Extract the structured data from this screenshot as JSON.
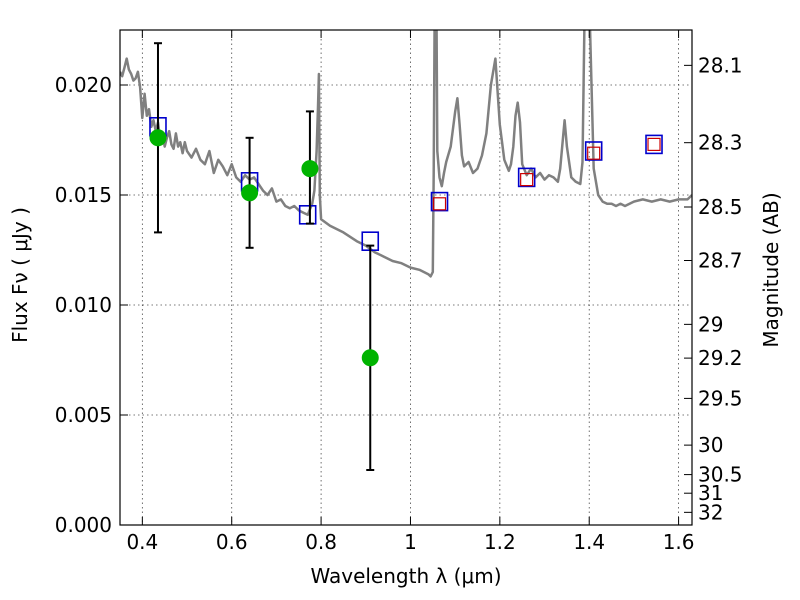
{
  "chart_data": {
    "type": "scatter",
    "xlabel": "Wavelength  λ (μm)",
    "ylabel": "Flux  Fν  ( μJy )",
    "ylabel_right": "Magnitude (AB)",
    "xlim": [
      0.35,
      1.63
    ],
    "ylim": [
      0.0,
      0.0225
    ],
    "x_ticks": [
      {
        "value": 0.4,
        "label": "0.4"
      },
      {
        "value": 0.6,
        "label": "0.6"
      },
      {
        "value": 0.8,
        "label": "0.8"
      },
      {
        "value": 1.0,
        "label": "1"
      },
      {
        "value": 1.2,
        "label": "1.2"
      },
      {
        "value": 1.4,
        "label": "1.4"
      },
      {
        "value": 1.6,
        "label": "1.6"
      }
    ],
    "y_ticks": [
      {
        "value": 0.0,
        "label": "0.000"
      },
      {
        "value": 0.005,
        "label": "0.005"
      },
      {
        "value": 0.01,
        "label": "0.010"
      },
      {
        "value": 0.015,
        "label": "0.015"
      },
      {
        "value": 0.02,
        "label": "0.020"
      }
    ],
    "right_ticks": [
      {
        "value": 28.1,
        "label": "28.1"
      },
      {
        "value": 28.3,
        "label": "28.3"
      },
      {
        "value": 28.5,
        "label": "28.5"
      },
      {
        "value": 28.7,
        "label": "28.7"
      },
      {
        "value": 29.0,
        "label": "29"
      },
      {
        "value": 29.2,
        "label": "29.2"
      },
      {
        "value": 29.5,
        "label": "29.5"
      },
      {
        "value": 30.0,
        "label": "30"
      },
      {
        "value": 30.5,
        "label": "30.5"
      },
      {
        "value": 31.0,
        "label": "31"
      },
      {
        "value": 32.0,
        "label": "32"
      }
    ],
    "grid": true,
    "series": [
      {
        "kind": "sed-template-line",
        "color": "#808080",
        "x": [
          0.35,
          0.355,
          0.36,
          0.365,
          0.37,
          0.375,
          0.38,
          0.385,
          0.39,
          0.395,
          0.4,
          0.405,
          0.41,
          0.415,
          0.42,
          0.425,
          0.43,
          0.435,
          0.44,
          0.445,
          0.45,
          0.455,
          0.46,
          0.465,
          0.47,
          0.475,
          0.48,
          0.485,
          0.49,
          0.495,
          0.5,
          0.51,
          0.52,
          0.53,
          0.54,
          0.55,
          0.56,
          0.57,
          0.58,
          0.59,
          0.6,
          0.61,
          0.62,
          0.63,
          0.64,
          0.65,
          0.66,
          0.67,
          0.68,
          0.69,
          0.7,
          0.71,
          0.72,
          0.73,
          0.74,
          0.75,
          0.76,
          0.77,
          0.78,
          0.785,
          0.79,
          0.793,
          0.795,
          0.797,
          0.8,
          0.82,
          0.85,
          0.88,
          0.9,
          0.92,
          0.94,
          0.96,
          0.98,
          1.0,
          1.02,
          1.04,
          1.045,
          1.05,
          1.052,
          1.055,
          1.058,
          1.06,
          1.065,
          1.07,
          1.075,
          1.08,
          1.09,
          1.1,
          1.105,
          1.11,
          1.115,
          1.12,
          1.13,
          1.14,
          1.15,
          1.16,
          1.17,
          1.18,
          1.19,
          1.2,
          1.21,
          1.22,
          1.225,
          1.23,
          1.235,
          1.24,
          1.245,
          1.25,
          1.26,
          1.27,
          1.28,
          1.29,
          1.3,
          1.31,
          1.32,
          1.33,
          1.335,
          1.34,
          1.345,
          1.35,
          1.36,
          1.37,
          1.38,
          1.385,
          1.39,
          1.395,
          1.4,
          1.41,
          1.42,
          1.43,
          1.44,
          1.45,
          1.46,
          1.47,
          1.48,
          1.5,
          1.52,
          1.54,
          1.56,
          1.58,
          1.6,
          1.62,
          1.63
        ],
        "y": [
          0.0206,
          0.0204,
          0.0208,
          0.0212,
          0.0207,
          0.0205,
          0.0202,
          0.0203,
          0.0206,
          0.0199,
          0.0185,
          0.0196,
          0.0186,
          0.0189,
          0.0181,
          0.0184,
          0.0179,
          0.0183,
          0.0175,
          0.0178,
          0.0172,
          0.0176,
          0.0179,
          0.0173,
          0.0171,
          0.0178,
          0.0172,
          0.0174,
          0.0169,
          0.0174,
          0.017,
          0.0167,
          0.0171,
          0.0166,
          0.0164,
          0.017,
          0.016,
          0.0166,
          0.0163,
          0.0159,
          0.0164,
          0.0158,
          0.0156,
          0.0159,
          0.0157,
          0.0158,
          0.0155,
          0.0152,
          0.015,
          0.0153,
          0.0147,
          0.0148,
          0.0145,
          0.0144,
          0.0145,
          0.0143,
          0.0142,
          0.0141,
          0.0146,
          0.0152,
          0.017,
          0.019,
          0.0205,
          0.015,
          0.0139,
          0.0136,
          0.0133,
          0.0129,
          0.0127,
          0.0124,
          0.0122,
          0.012,
          0.0119,
          0.0117,
          0.0116,
          0.0114,
          0.0113,
          0.0115,
          0.016,
          0.026,
          0.024,
          0.017,
          0.0158,
          0.0154,
          0.016,
          0.0165,
          0.0172,
          0.0188,
          0.0194,
          0.0182,
          0.0168,
          0.0163,
          0.0165,
          0.016,
          0.0162,
          0.0168,
          0.0178,
          0.02,
          0.0212,
          0.0182,
          0.0166,
          0.0161,
          0.0164,
          0.0172,
          0.0186,
          0.0192,
          0.0183,
          0.0164,
          0.0159,
          0.0162,
          0.0158,
          0.016,
          0.0157,
          0.0159,
          0.0158,
          0.0156,
          0.0162,
          0.0173,
          0.0184,
          0.0172,
          0.0158,
          0.0156,
          0.0155,
          0.0165,
          0.024,
          0.026,
          0.024,
          0.0162,
          0.015,
          0.0147,
          0.0146,
          0.0146,
          0.0145,
          0.0146,
          0.0145,
          0.0147,
          0.0148,
          0.0147,
          0.0148,
          0.0147,
          0.0148,
          0.0148,
          0.015
        ]
      },
      {
        "kind": "template-band-flux",
        "marker": "open-square",
        "color": "#0000cc",
        "x": [
          0.435,
          0.64,
          0.77,
          0.91,
          1.065,
          1.26,
          1.41,
          1.545
        ],
        "y": [
          0.0181,
          0.0156,
          0.0141,
          0.0129,
          0.0147,
          0.0158,
          0.017,
          0.0173
        ]
      },
      {
        "kind": "model-flux",
        "marker": "open-square-small",
        "color": "#cc0000",
        "x": [
          1.065,
          1.26,
          1.41,
          1.545
        ],
        "y": [
          0.0146,
          0.0157,
          0.0169,
          0.0173
        ]
      },
      {
        "kind": "observed-flux",
        "marker": "filled-circle",
        "color": "#00b300",
        "x": [
          0.435,
          0.64,
          0.775,
          0.91
        ],
        "y": [
          0.0176,
          0.0151,
          0.0162,
          0.0076
        ],
        "err_low": [
          0.0133,
          0.0126,
          0.0137,
          0.0025
        ],
        "err_high": [
          0.0219,
          0.0176,
          0.0188,
          0.0127
        ]
      }
    ]
  }
}
